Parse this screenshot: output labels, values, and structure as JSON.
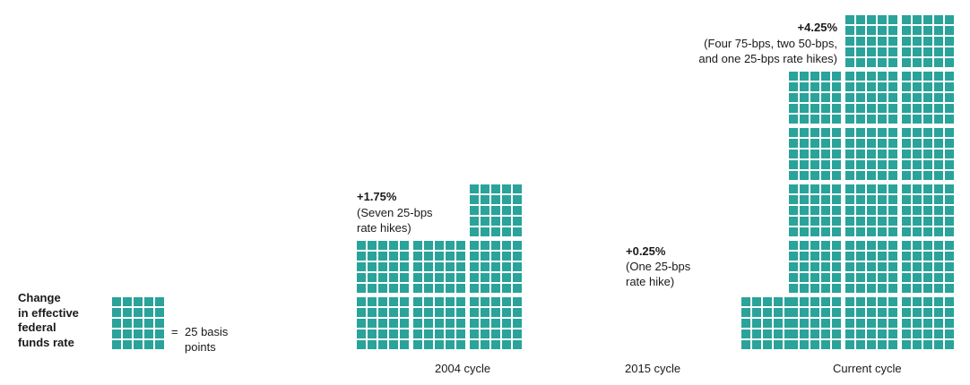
{
  "chart_data": {
    "type": "waffle",
    "unit_bps": 25,
    "colors": {
      "cell": "#2aa39a",
      "background": "#ffffff"
    },
    "legend": {
      "title_lines": [
        "Change",
        "in effective",
        "federal",
        "funds rate"
      ],
      "equals": "=",
      "value_lines": [
        "25 basis",
        "points"
      ]
    },
    "series": [
      {
        "cycle": "2004 cycle",
        "total": "+1.75%",
        "note_lines": [
          "(Seven 25-bps",
          "rate hikes)"
        ],
        "hikes_bps": [
          25,
          25,
          25,
          25,
          25,
          25,
          25
        ]
      },
      {
        "cycle": "2015 cycle",
        "total": "+0.25%",
        "note_lines": [
          "(One 25-bps",
          "rate hike)"
        ],
        "hikes_bps": [
          25
        ]
      },
      {
        "cycle": "Current cycle",
        "total": "+4.25%",
        "note_lines": [
          "(Four 75-bps, two 50-bps,",
          "and one 25-bps rate hikes)"
        ],
        "hikes_bps": [
          75,
          75,
          75,
          75,
          50,
          50,
          25
        ]
      }
    ]
  }
}
